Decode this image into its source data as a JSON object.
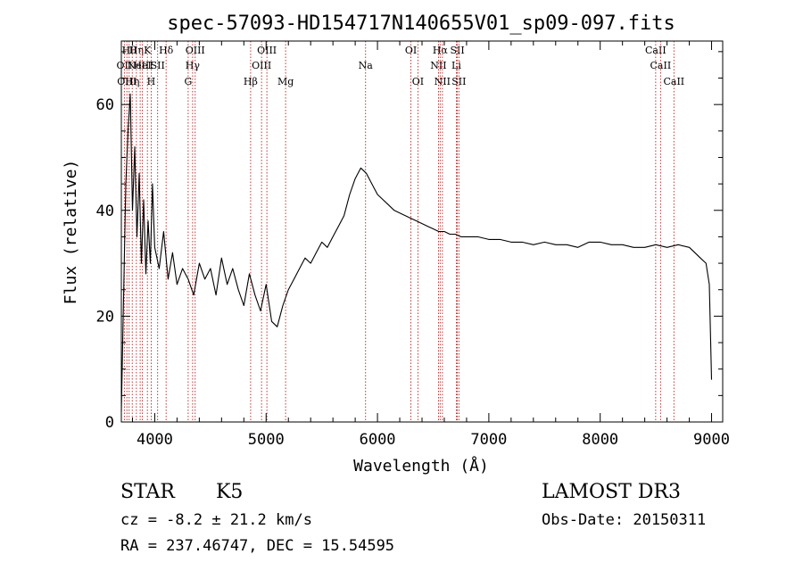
{
  "chart_data": {
    "type": "line",
    "title": "spec-57093-HD154717N140655V01_sp09-097.fits",
    "xlabel": "Wavelength (Å)",
    "ylabel": "Flux (relative)",
    "xlim": [
      3700,
      9100
    ],
    "ylim": [
      0,
      72
    ],
    "xticks": [
      4000,
      5000,
      6000,
      7000,
      8000,
      9000
    ],
    "yticks": [
      0,
      20,
      40,
      60
    ],
    "line_color": "#000000",
    "marker_color": "#b22222",
    "spectrum": {
      "x": [
        3700,
        3740,
        3760,
        3780,
        3800,
        3820,
        3840,
        3860,
        3880,
        3900,
        3920,
        3940,
        3960,
        3980,
        4000,
        4040,
        4080,
        4120,
        4160,
        4200,
        4250,
        4300,
        4350,
        4400,
        4450,
        4500,
        4550,
        4600,
        4650,
        4700,
        4750,
        4800,
        4850,
        4900,
        4950,
        5000,
        5050,
        5100,
        5150,
        5200,
        5250,
        5300,
        5350,
        5400,
        5450,
        5500,
        5550,
        5600,
        5650,
        5700,
        5750,
        5800,
        5850,
        5900,
        5950,
        6000,
        6050,
        6100,
        6150,
        6200,
        6250,
        6300,
        6350,
        6400,
        6450,
        6500,
        6550,
        6600,
        6650,
        6700,
        6750,
        6800,
        6900,
        7000,
        7100,
        7200,
        7300,
        7400,
        7500,
        7600,
        7700,
        7800,
        7900,
        8000,
        8100,
        8200,
        8300,
        8400,
        8500,
        8600,
        8700,
        8800,
        8850,
        8900,
        8950,
        8980,
        9000
      ],
      "y": [
        2,
        45,
        55,
        62,
        40,
        52,
        35,
        47,
        30,
        42,
        28,
        38,
        30,
        45,
        33,
        29,
        36,
        27,
        32,
        26,
        29,
        27,
        24,
        30,
        27,
        29,
        24,
        31,
        26,
        29,
        25,
        22,
        28,
        24,
        21,
        26,
        19,
        18,
        22,
        25,
        27,
        29,
        31,
        30,
        32,
        34,
        33,
        35,
        37,
        39,
        43,
        46,
        48,
        47,
        45,
        43,
        42,
        41,
        40,
        39.5,
        39,
        38.5,
        38,
        37.5,
        37,
        36.5,
        36,
        36,
        35.5,
        35.5,
        35,
        35,
        35,
        34.5,
        34.5,
        34,
        34,
        33.5,
        34,
        33.5,
        33.5,
        33,
        34,
        34,
        33.5,
        33.5,
        33,
        33,
        33.5,
        33,
        33.5,
        33,
        32,
        31,
        30,
        26,
        8
      ]
    },
    "lines": [
      {
        "wl": 3727,
        "label": "OII",
        "row": 1
      },
      {
        "wl": 3750,
        "label": "OIII",
        "row": 2
      },
      {
        "wl": 3770,
        "label": "Hθ",
        "row": 0
      },
      {
        "wl": 3798,
        "label": "Hη",
        "row": 2
      },
      {
        "wl": 3835,
        "label": "Hη",
        "row": 0
      },
      {
        "wl": 3869,
        "label": "NeIII",
        "row": 1
      },
      {
        "wl": 3889,
        "label": "HeI",
        "row": 1
      },
      {
        "wl": 3934,
        "label": "K",
        "row": 0
      },
      {
        "wl": 3968,
        "label": "H",
        "row": 2
      },
      {
        "wl": 4026,
        "label": "SII",
        "row": 1
      },
      {
        "wl": 4102,
        "label": "Hδ",
        "row": 0
      },
      {
        "wl": 4300,
        "label": "G",
        "row": 2
      },
      {
        "wl": 4340,
        "label": "Hγ",
        "row": 1
      },
      {
        "wl": 4363,
        "label": "OIII",
        "row": 0
      },
      {
        "wl": 4861,
        "label": "Hβ",
        "row": 2
      },
      {
        "wl": 4959,
        "label": "OIII",
        "row": 1
      },
      {
        "wl": 5007,
        "label": "OIII",
        "row": 0
      },
      {
        "wl": 5175,
        "label": "Mg",
        "row": 2
      },
      {
        "wl": 5893,
        "label": "Na",
        "row": 1
      },
      {
        "wl": 6300,
        "label": "OI",
        "row": 0
      },
      {
        "wl": 6363,
        "label": "OI",
        "row": 2
      },
      {
        "wl": 6548,
        "label": "NII",
        "row": 1
      },
      {
        "wl": 6563,
        "label": "Hα",
        "row": 0
      },
      {
        "wl": 6583,
        "label": "NII",
        "row": 2
      },
      {
        "wl": 6708,
        "label": "Li",
        "row": 1
      },
      {
        "wl": 6717,
        "label": "SII",
        "row": 0
      },
      {
        "wl": 6731,
        "label": "SII",
        "row": 2
      },
      {
        "wl": 8498,
        "label": "CaII",
        "row": 0
      },
      {
        "wl": 8542,
        "label": "CaII",
        "row": 1
      },
      {
        "wl": 8662,
        "label": "CaII",
        "row": 2
      }
    ]
  },
  "info": {
    "class_label": "STAR",
    "subclass": "K5",
    "survey": "LAMOST DR3",
    "cz": "cz = -8.2 ± 21.2 km/s",
    "obs_date": "Obs-Date: 20150311",
    "radec": "RA = 237.46747, DEC =  15.54595"
  }
}
